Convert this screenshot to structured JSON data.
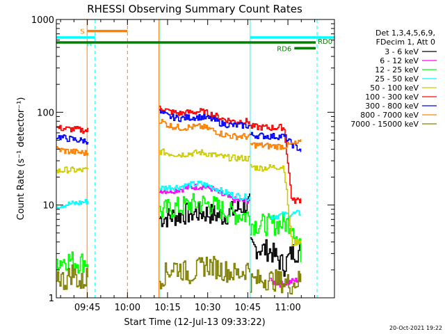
{
  "chart_data": {
    "type": "line",
    "title": "RHESSI Observing Summary Count Rates",
    "xlabel": "Start Time (12-Jul-13 09:33:22)",
    "ylabel": "Count Rate (s⁻¹ detector⁻¹)",
    "x_unit": "minutes after 09:33:22",
    "xlim": [
      0,
      104
    ],
    "ylim": [
      1,
      1000
    ],
    "yscale": "log",
    "x_ticks": [
      {
        "label": "09:45",
        "x": 11.6
      },
      {
        "label": "10:00",
        "x": 26.6
      },
      {
        "label": "10:15",
        "x": 41.6
      },
      {
        "label": "10:30",
        "x": 56.6
      },
      {
        "label": "10:45",
        "x": 71.6
      },
      {
        "label": "11:00",
        "x": 86.6
      }
    ],
    "y_ticks": [
      {
        "label": "1",
        "y": 1
      },
      {
        "label": "10",
        "y": 10
      },
      {
        "label": "100",
        "y": 100
      },
      {
        "label": "1000",
        "y": 1000
      }
    ],
    "legend": {
      "position": "right",
      "header": [
        "Det 1,3,4,5,6,9,",
        "FDecim 1, Att 0"
      ]
    },
    "series": [
      {
        "name": "3 - 6 keV",
        "color": "#000000",
        "segments": [
          {
            "x": [
              38.5,
              42,
              46,
              50,
              54,
              58,
              62,
              66,
              70,
              72.5
            ],
            "y": [
              7.2,
              7.4,
              7.8,
              8.2,
              8.3,
              8.0,
              7.6,
              8.6,
              9.8,
              10.2
            ]
          },
          {
            "x": [
              72.5,
              76,
              80,
              85,
              88,
              91.5
            ],
            "y": [
              3.5,
              3.4,
              3.2,
              2.2,
              3.1,
              3.2
            ]
          }
        ]
      },
      {
        "name": "6 - 12 keV",
        "color": "#ff00ff",
        "segments": [
          {
            "x": [
              38.5,
              42,
              46,
              50,
              54,
              58,
              62,
              66,
              70,
              72.5
            ],
            "y": [
              14.5,
              14.2,
              14.8,
              15.5,
              16.0,
              15.0,
              12.8,
              11.5,
              11.0,
              11.5
            ]
          },
          {
            "x": [
              80,
              84,
              88,
              91.5
            ],
            "y": [
              1.5,
              1.4,
              1.5,
              1.6
            ]
          }
        ]
      },
      {
        "name": "12 - 25 keV",
        "color": "#00ff00",
        "segments": [
          {
            "x": [
              0,
              4,
              8,
              12
            ],
            "y": [
              2.5,
              2.6,
              2.4,
              2.5
            ]
          },
          {
            "x": [
              38.5,
              42,
              46,
              50,
              54,
              58,
              62,
              66,
              70,
              72.5
            ],
            "y": [
              8.5,
              9.0,
              9.5,
              10.2,
              10.5,
              10.0,
              8.8,
              8.0,
              7.8,
              7.6
            ]
          },
          {
            "x": [
              72.5,
              76,
              80,
              84,
              88,
              91.5
            ],
            "y": [
              6.3,
              6.2,
              6.1,
              6.3,
              6.5,
              3.0
            ]
          }
        ]
      },
      {
        "name": "25 - 50 keV",
        "color": "#00ffff",
        "segments": [
          {
            "x": [
              0,
              4,
              8,
              12
            ],
            "y": [
              9.8,
              10.2,
              10.5,
              11.0
            ]
          },
          {
            "x": [
              38.5,
              42,
              46,
              50,
              54,
              58,
              62,
              66,
              70,
              72.5
            ],
            "y": [
              15.2,
              15.5,
              15.8,
              16.5,
              17.0,
              15.8,
              14.0,
              12.8,
              12.2,
              12.0
            ]
          },
          {
            "x": [
              80,
              84,
              88,
              91.5
            ],
            "y": [
              7.5,
              7.8,
              8.0,
              8.2
            ]
          }
        ]
      },
      {
        "name": "50 - 100 keV",
        "color": "#cccc00",
        "segments": [
          {
            "x": [
              0,
              4,
              8,
              12
            ],
            "y": [
              23,
              24,
              23.5,
              24
            ]
          },
          {
            "x": [
              38.5,
              42,
              46,
              50,
              54,
              58,
              62,
              66,
              70,
              72.5
            ],
            "y": [
              38,
              36,
              35,
              36,
              37,
              35,
              33,
              32,
              32,
              31.5
            ]
          },
          {
            "x": [
              72.5,
              76,
              80,
              85,
              88,
              91.5
            ],
            "y": [
              26,
              25,
              25.5,
              26,
              3.8,
              4.2
            ]
          }
        ]
      },
      {
        "name": "100 - 300 keV",
        "color": "#ff0000",
        "segments": [
          {
            "x": [
              0,
              4,
              8,
              12
            ],
            "y": [
              68,
              66,
              65,
              63
            ]
          },
          {
            "x": [
              38.5,
              42,
              46,
              50,
              54,
              58,
              62,
              66,
              70,
              72.5
            ],
            "y": [
              115,
              102,
              97,
              100,
              102,
              95,
              85,
              80,
              80,
              79
            ]
          },
          {
            "x": [
              72.5,
              76,
              80,
              85,
              88,
              91.5
            ],
            "y": [
              70,
              69,
              68,
              69,
              11,
              11.5
            ]
          }
        ]
      },
      {
        "name": "300 - 800 keV",
        "color": "#0000ff",
        "segments": [
          {
            "x": [
              0,
              4,
              8,
              12
            ],
            "y": [
              55,
              52,
              50,
              49
            ]
          },
          {
            "x": [
              38.5,
              42,
              46,
              50,
              54,
              58,
              62,
              66,
              70,
              72.5
            ],
            "y": [
              100,
              90,
              86,
              88,
              89,
              84,
              75,
              72,
              72,
              71
            ]
          },
          {
            "x": [
              72.5,
              76,
              80,
              85,
              88,
              91.5
            ],
            "y": [
              57,
              56,
              55,
              55,
              45,
              39
            ]
          }
        ]
      },
      {
        "name": "800 - 7000 keV",
        "color": "#ff8000",
        "segments": [
          {
            "x": [
              0,
              4,
              8,
              12
            ],
            "y": [
              40,
              38,
              37,
              36
            ]
          },
          {
            "x": [
              38.5,
              42,
              46,
              50,
              54,
              58,
              62,
              66,
              70,
              72.5
            ],
            "y": [
              82,
              72,
              68,
              69,
              70,
              65,
              58,
              55,
              55,
              54
            ]
          },
          {
            "x": [
              72.5,
              76,
              80,
              85,
              88,
              91.5
            ],
            "y": [
              45,
              44,
              43,
              43,
              45,
              47
            ]
          }
        ]
      },
      {
        "name": "7000 - 15000 keV",
        "color": "#808000",
        "segments": [
          {
            "x": [
              0,
              3,
              6,
              9,
              12
            ],
            "y": [
              1.8,
              1.5,
              1.9,
              1.4,
              1.8
            ]
          },
          {
            "x": [
              38.5,
              44,
              50,
              56,
              62,
              68,
              72.5
            ],
            "y": [
              1.6,
              2.2,
              1.8,
              2.3,
              2.0,
              1.8,
              2.2
            ]
          },
          {
            "x": [
              72.5,
              78,
              84,
              88,
              91.5
            ],
            "y": [
              1.5,
              1.6,
              1.5,
              1.4,
              1.6
            ]
          }
        ]
      }
    ],
    "flags": [
      {
        "label": "S",
        "color": "#ff8000",
        "x": [
          11.6,
          26.6
        ],
        "y": 750,
        "label_side": "left"
      },
      {
        "label": "N",
        "color": "#00ffff",
        "x": [
          0,
          14.5
        ],
        "y": 640,
        "label_side": "inside"
      },
      {
        "label": "N",
        "color": "#00ffff",
        "x": [
          72.5,
          104
        ],
        "y": 640,
        "label_side": "none"
      },
      {
        "label": "RD0",
        "color": "#008000",
        "x": [
          0,
          97
        ],
        "y": 565,
        "label_side": "right"
      },
      {
        "label": "RD6",
        "color": "#008000",
        "x": [
          89,
          97
        ],
        "y": 490,
        "label_side": "left"
      }
    ],
    "vlines": [
      {
        "x": 11.5,
        "color": "#ff8000",
        "style": "solid"
      },
      {
        "x": 14.5,
        "color": "#00ffff",
        "style": "dashed"
      },
      {
        "x": 26.6,
        "color": "#ff8000",
        "style": "dashed"
      },
      {
        "x": 38.3,
        "color": "#ff8000",
        "style": "solid"
      },
      {
        "x": 38.7,
        "color": "#00ffff",
        "style": "solid"
      },
      {
        "x": 72.5,
        "color": "#00ffff",
        "style": "solid"
      },
      {
        "x": 97.5,
        "color": "#00ffff",
        "style": "dashed"
      }
    ],
    "footer": "20-Oct-2021 19:22"
  }
}
